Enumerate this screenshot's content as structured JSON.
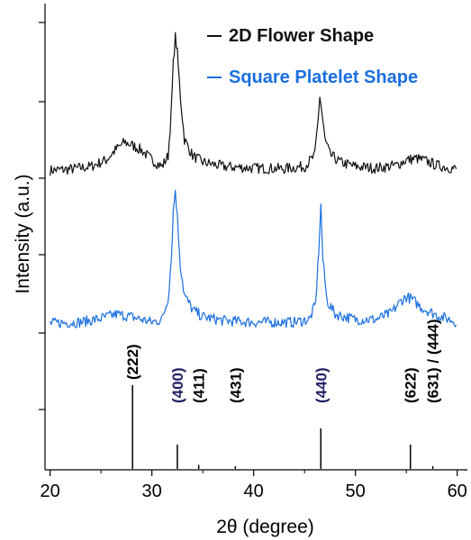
{
  "chart_data": {
    "type": "line",
    "xlabel": "2θ  (degree)",
    "ylabel": "Intensity (a.u.)",
    "xlim": [
      19.5,
      61
    ],
    "x_ticks": [
      20,
      30,
      40,
      50,
      60
    ],
    "y_ticks": "unlabeled",
    "grid": false,
    "legend_position": "top-right",
    "series": [
      {
        "name": "2D Flower Shape",
        "color": "#111111",
        "points": [
          [
            20,
            0.43
          ],
          [
            22,
            0.45
          ],
          [
            24,
            0.5
          ],
          [
            25.5,
            0.62
          ],
          [
            26.5,
            0.82
          ],
          [
            27.3,
            0.95
          ],
          [
            28,
            0.9
          ],
          [
            29,
            0.8
          ],
          [
            30,
            0.62
          ],
          [
            31,
            0.5
          ],
          [
            31.6,
            0.7
          ],
          [
            31.9,
            1.5
          ],
          [
            32.1,
            2.4
          ],
          [
            32.3,
            2.9
          ],
          [
            32.5,
            2.6
          ],
          [
            32.8,
            1.8
          ],
          [
            33.2,
            1.0
          ],
          [
            34,
            0.7
          ],
          [
            35,
            0.58
          ],
          [
            37,
            0.5
          ],
          [
            40,
            0.47
          ],
          [
            43,
            0.46
          ],
          [
            45,
            0.5
          ],
          [
            46,
            0.7
          ],
          [
            46.3,
            1.3
          ],
          [
            46.5,
            1.8
          ],
          [
            46.7,
            1.5
          ],
          [
            47,
            1.0
          ],
          [
            47.5,
            0.72
          ],
          [
            48.5,
            0.58
          ],
          [
            50,
            0.5
          ],
          [
            52,
            0.47
          ],
          [
            54,
            0.52
          ],
          [
            55,
            0.62
          ],
          [
            56,
            0.65
          ],
          [
            57,
            0.6
          ],
          [
            58,
            0.52
          ],
          [
            60,
            0.45
          ]
        ]
      },
      {
        "name": "Square Platelet Shape",
        "color": "#1a6fe0",
        "points": [
          [
            20,
            0.43
          ],
          [
            23,
            0.45
          ],
          [
            25,
            0.52
          ],
          [
            26.5,
            0.6
          ],
          [
            28,
            0.55
          ],
          [
            30,
            0.45
          ],
          [
            31,
            0.5
          ],
          [
            31.6,
            0.9
          ],
          [
            31.9,
            1.6
          ],
          [
            32.1,
            2.5
          ],
          [
            32.3,
            2.9
          ],
          [
            32.5,
            2.4
          ],
          [
            32.8,
            1.5
          ],
          [
            33.2,
            0.95
          ],
          [
            34,
            0.68
          ],
          [
            35,
            0.55
          ],
          [
            37,
            0.48
          ],
          [
            40,
            0.45
          ],
          [
            44,
            0.45
          ],
          [
            45.5,
            0.5
          ],
          [
            46.1,
            0.8
          ],
          [
            46.4,
            1.8
          ],
          [
            46.6,
            2.6
          ],
          [
            46.8,
            1.6
          ],
          [
            47.2,
            0.85
          ],
          [
            48,
            0.6
          ],
          [
            50,
            0.5
          ],
          [
            52,
            0.5
          ],
          [
            53.5,
            0.62
          ],
          [
            54.5,
            0.85
          ],
          [
            55,
            0.92
          ],
          [
            55.5,
            0.88
          ],
          [
            56.5,
            0.72
          ],
          [
            58,
            0.58
          ],
          [
            60,
            0.45
          ]
        ]
      }
    ],
    "reference_lines": [
      {
        "x": 28.1,
        "height": 0.62,
        "label": "(222)",
        "label_color": "#000000"
      },
      {
        "x": 32.5,
        "height": 0.18,
        "label": "(400)",
        "label_color": "#1f1f66"
      },
      {
        "x": 34.6,
        "height": 0.03,
        "label": "(411)",
        "label_color": "#000000"
      },
      {
        "x": 38.2,
        "height": 0.02,
        "label": "(431)",
        "label_color": "#000000"
      },
      {
        "x": 46.6,
        "height": 0.3,
        "label": "(440)",
        "label_color": "#1f1f66"
      },
      {
        "x": 55.4,
        "height": 0.18,
        "label": "(622)",
        "label_color": "#000000"
      },
      {
        "x": 57.6,
        "height": 0.02,
        "label": "(631) / (444)",
        "label_color": "#000000"
      }
    ]
  }
}
